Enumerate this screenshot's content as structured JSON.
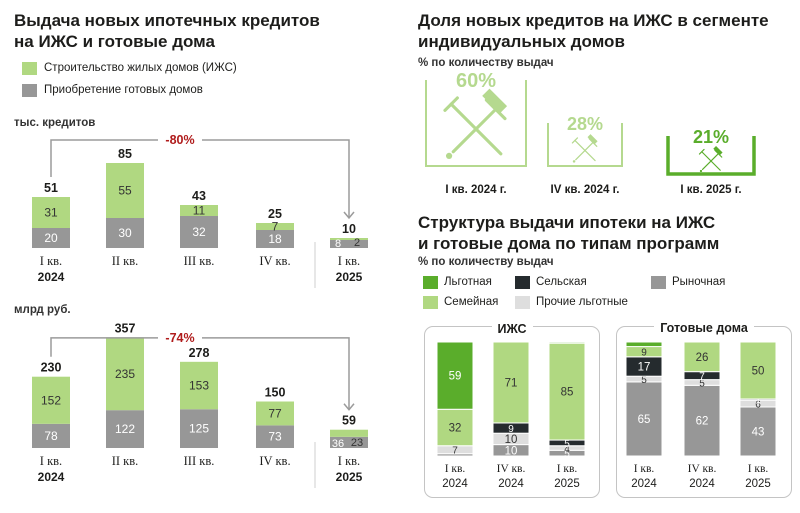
{
  "colors": {
    "igs": "#b0d881",
    "ready": "#979797",
    "dark_green": "#5aad2b",
    "rural": "#252b2e",
    "family": "#b0d881",
    "market": "#979797",
    "other": "#dedede",
    "dropline": "#9b9b9b",
    "decline": "#b01c1c",
    "pct_green": "#b5d98f"
  },
  "left": {
    "title_line1": "Выдача новых ипотечных кредитов",
    "title_line2": "на ИЖС и готовые дома",
    "legend": [
      {
        "label": "Строительство жилых домов (ИЖС)",
        "color": "#b0d881"
      },
      {
        "label": "Приобретение готовых домов",
        "color": "#979797"
      }
    ],
    "unit_top": "тыс. кредитов",
    "unit_bottom": "млрд руб."
  },
  "right": {
    "title1_line1": "Доля новых кредитов на ИЖС в сегменте",
    "title1_line2": "индивидуальных домов",
    "subtitle1": "% по количеству выдач",
    "title2_line1": "Структура выдачи ипотеки на ИЖС",
    "title2_line2": "и готовые дома по типам программ",
    "subtitle2": "% по количеству выдач",
    "legend": [
      {
        "label": "Льготная",
        "color": "#5aad2b"
      },
      {
        "label": "Сельская",
        "color": "#252b2e"
      },
      {
        "label": "Рыночная",
        "color": "#979797"
      },
      {
        "label": "Семейная",
        "color": "#b0d881"
      },
      {
        "label": "Прочие льготные",
        "color": "#dedede"
      }
    ],
    "panel_igs": "ИЖС",
    "panel_ready": "Готовые дома"
  },
  "chart_data": [
    {
      "type": "bar",
      "stacked": true,
      "title": "Выдача новых ипотечных кредитов на ИЖС и готовые дома",
      "unit": "тыс. кредитов",
      "categories": [
        "I кв.|2024",
        "II кв.",
        "III кв.",
        "IV кв.",
        "I кв.|2025"
      ],
      "series": [
        {
          "name": "Приобретение готовых домов",
          "values": [
            20,
            30,
            32,
            18,
            8
          ]
        },
        {
          "name": "Строительство жилых домов (ИЖС)",
          "values": [
            31,
            55,
            11,
            7,
            2
          ]
        }
      ],
      "totals": [
        51,
        85,
        43,
        25,
        10
      ],
      "annotation": "-80%"
    },
    {
      "type": "bar",
      "stacked": true,
      "unit": "млрд руб.",
      "categories": [
        "I кв.|2024",
        "II кв.",
        "III кв.",
        "IV кв.",
        "I кв.|2025"
      ],
      "series": [
        {
          "name": "Приобретение готовых домов",
          "values": [
            78,
            122,
            125,
            73,
            36
          ]
        },
        {
          "name": "Строительство жилых домов (ИЖС)",
          "values": [
            152,
            235,
            153,
            77,
            23
          ]
        }
      ],
      "totals": [
        230,
        357,
        278,
        150,
        59
      ],
      "annotation": "-74%"
    },
    {
      "type": "bar",
      "title": "Доля новых кредитов на ИЖС в сегменте индивидуальных домов",
      "unit": "% по количеству выдач",
      "categories": [
        "I кв. 2024 г.",
        "IV кв. 2024 г.",
        "I кв. 2025 г."
      ],
      "values": [
        60,
        28,
        21
      ],
      "labels": [
        "60%",
        "28%",
        "21%"
      ]
    },
    {
      "type": "bar",
      "stacked": true,
      "title": "Структура выдачи ипотеки на ИЖС",
      "unit": "% по количеству выдач",
      "categories": [
        "I кв.|2024",
        "IV кв.|2024",
        "I кв.|2025"
      ],
      "series": [
        {
          "name": "Рыночная",
          "values": [
            2,
            10,
            5
          ],
          "labels": [
            "",
            "10",
            "5"
          ]
        },
        {
          "name": "Прочие льготные",
          "values": [
            7,
            10,
            4
          ],
          "labels": [
            "7",
            "10",
            "4"
          ]
        },
        {
          "name": "Сельская",
          "values": [
            0,
            9,
            5
          ],
          "labels": [
            "",
            "9",
            "5"
          ]
        },
        {
          "name": "Семейная",
          "values": [
            32,
            71,
            85
          ],
          "labels": [
            "32",
            "71",
            "85"
          ]
        },
        {
          "name": "Льготная",
          "values": [
            59,
            0,
            1
          ],
          "labels": [
            "59",
            "",
            ""
          ]
        }
      ]
    },
    {
      "type": "bar",
      "stacked": true,
      "title": "Структура выдачи ипотеки на готовые дома",
      "unit": "% по количеству выдач",
      "categories": [
        "I кв.|2024",
        "IV кв.|2024",
        "I кв.|2025"
      ],
      "series": [
        {
          "name": "Рыночная",
          "values": [
            65,
            62,
            43
          ],
          "labels": [
            "65",
            "62",
            "43"
          ]
        },
        {
          "name": "Прочие льготные",
          "values": [
            5,
            5,
            6
          ],
          "labels": [
            "5",
            "5",
            "6"
          ]
        },
        {
          "name": "Сельская",
          "values": [
            17,
            7,
            1
          ],
          "labels": [
            "17",
            "7",
            "1"
          ]
        },
        {
          "name": "Семейная",
          "values": [
            9,
            26,
            50
          ],
          "labels": [
            "9",
            "26",
            "50"
          ]
        },
        {
          "name": "Льготная",
          "values": [
            4,
            0,
            0
          ],
          "labels": [
            "",
            "",
            ""
          ]
        }
      ]
    }
  ]
}
